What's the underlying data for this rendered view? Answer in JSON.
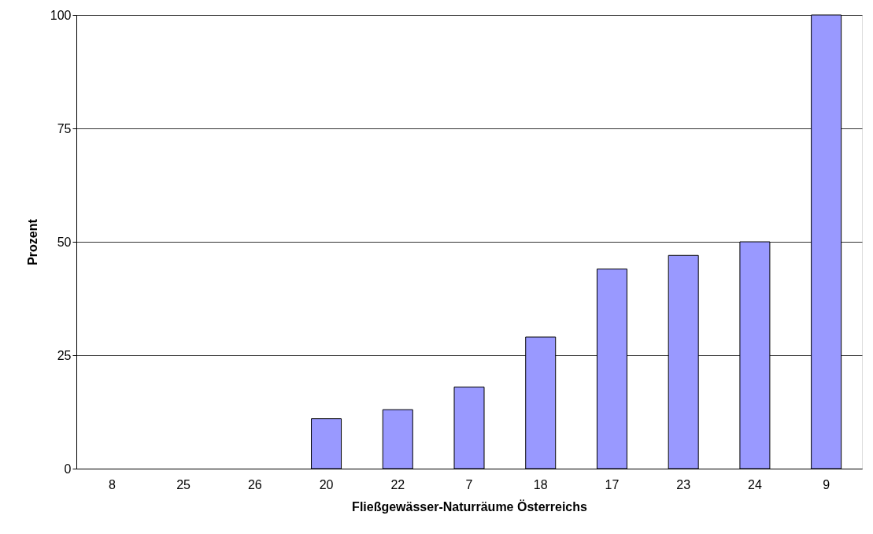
{
  "chart_data": {
    "type": "bar",
    "categories": [
      "8",
      "25",
      "26",
      "20",
      "22",
      "7",
      "18",
      "17",
      "23",
      "24",
      "9"
    ],
    "values": [
      0,
      0,
      0,
      11,
      13,
      18,
      29,
      44,
      47,
      50,
      100
    ],
    "color": "#9999ff",
    "xlabel": "Fließgewässer-Naturräume Österreichs",
    "ylabel": "Prozent",
    "ylim": [
      0,
      100
    ],
    "yticks": [
      0,
      25,
      50,
      75,
      100
    ],
    "grid": "y"
  }
}
